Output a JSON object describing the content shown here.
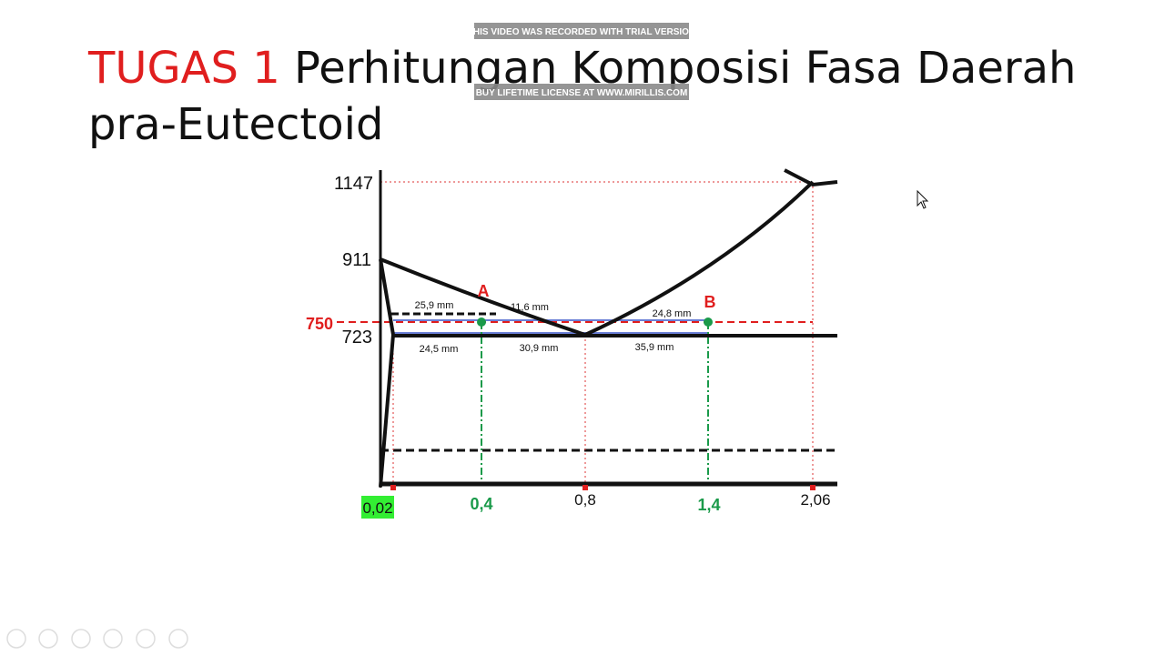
{
  "slide": {
    "title": {
      "highlight": "TUGAS 1",
      "text": "Perhitungan Komposisi Fasa Daerah pra-Eutectoid"
    },
    "watermark": {
      "top": "THIS VIDEO WAS RECORDED WITH TRIAL VERSION",
      "bottom": "BUY LIFETIME LICENSE AT WWW.MIRILLIS.COM"
    },
    "diagram": {
      "y_labels": [
        "1147",
        "911",
        "750",
        "723"
      ],
      "x_labels": [
        "0,02",
        "0,4",
        "0,8",
        "1,4",
        "2,06"
      ],
      "points": [
        "A",
        "B"
      ],
      "measurements": [
        "25,9 mm",
        "11,6 mm",
        "24,8 mm",
        "24,5 mm",
        "30,9 mm",
        "35,9 mm"
      ]
    }
  }
}
